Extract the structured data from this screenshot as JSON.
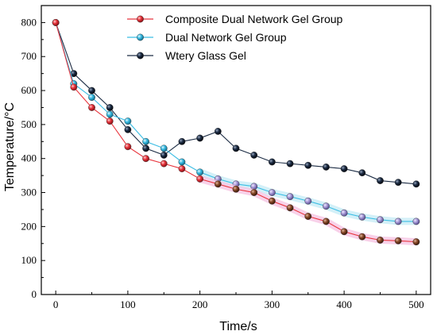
{
  "chart_data": {
    "type": "line",
    "xlabel": "Time/s",
    "ylabel": "Temperature/°C",
    "xlim": [
      -20,
      520
    ],
    "ylim": [
      0,
      850
    ],
    "xticks": [
      0,
      100,
      200,
      300,
      400,
      500
    ],
    "yticks": [
      0,
      100,
      200,
      300,
      400,
      500,
      600,
      700,
      800
    ],
    "grid": false,
    "legend_position": "top-right",
    "series": [
      {
        "name": "Composite Dual Network Gel Group",
        "color": "#e8353d",
        "x": [
          0,
          25,
          50,
          75,
          100,
          125,
          150,
          175,
          200,
          225,
          250,
          275,
          300,
          325,
          350,
          375,
          400,
          425,
          450,
          475,
          500
        ],
        "y": [
          800,
          610,
          550,
          510,
          435,
          400,
          385,
          370,
          340,
          325,
          310,
          300,
          275,
          255,
          230,
          215,
          185,
          170,
          160,
          158,
          155
        ]
      },
      {
        "name": "Dual Network Gel Group",
        "color": "#3bbde4",
        "x": [
          0,
          25,
          50,
          75,
          100,
          125,
          150,
          175,
          200,
          225,
          250,
          275,
          300,
          325,
          350,
          375,
          400,
          425,
          450,
          475,
          500
        ],
        "y": [
          800,
          620,
          580,
          530,
          510,
          450,
          430,
          390,
          360,
          340,
          325,
          318,
          300,
          288,
          275,
          260,
          240,
          228,
          220,
          215,
          215
        ]
      },
      {
        "name": "Wtery Glass Gel",
        "color": "#1c2c44",
        "x": [
          0,
          25,
          50,
          75,
          100,
          125,
          150,
          175,
          200,
          225,
          250,
          275,
          300,
          325,
          350,
          375,
          400,
          425,
          450,
          475,
          500
        ],
        "y": [
          800,
          650,
          600,
          550,
          485,
          430,
          410,
          450,
          460,
          480,
          430,
          410,
          390,
          385,
          380,
          375,
          370,
          358,
          335,
          330,
          325
        ]
      }
    ]
  }
}
